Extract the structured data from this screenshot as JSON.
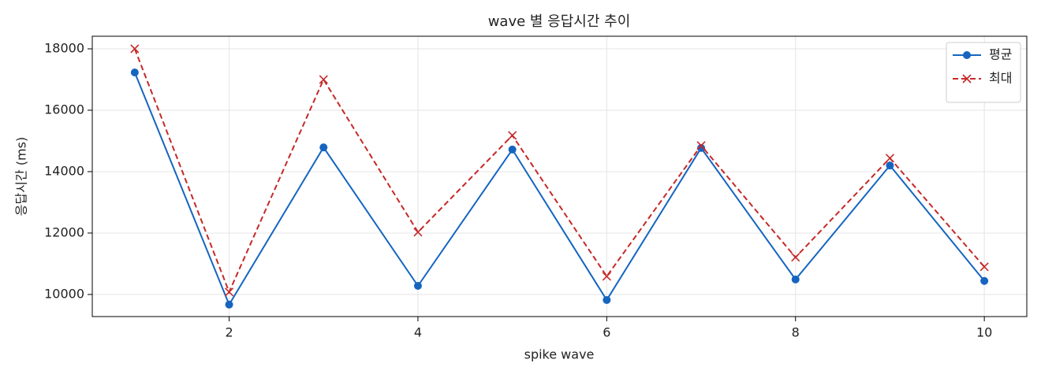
{
  "chart_data": {
    "type": "line",
    "title": "wave 별 응답시간 추이",
    "x_label": "spike wave",
    "y_label": "응답시간 (ms)",
    "x": [
      1,
      2,
      3,
      4,
      5,
      6,
      7,
      8,
      9,
      10
    ],
    "series": [
      {
        "name": "평균",
        "color": "#1565c0",
        "marker": "o",
        "linestyle": "solid",
        "values": [
          17230,
          9670,
          14790,
          10280,
          14720,
          9820,
          14770,
          10490,
          14200,
          10440
        ]
      },
      {
        "name": "최대",
        "color": "#c62828",
        "marker": "x",
        "linestyle": "dashed",
        "values": [
          18000,
          10080,
          17000,
          12030,
          15180,
          10590,
          14850,
          11210,
          14440,
          10900
        ]
      }
    ],
    "xlim": [
      0.55,
      10.45
    ],
    "ylim": [
      9280,
      18410
    ],
    "xticks": [
      2,
      4,
      6,
      8,
      10
    ],
    "yticks": [
      10000,
      12000,
      14000,
      16000,
      18000
    ],
    "grid": true,
    "legend": "upper right"
  }
}
